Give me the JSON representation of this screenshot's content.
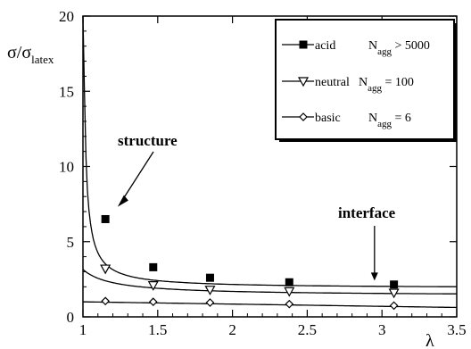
{
  "chart_data": {
    "type": "line",
    "xlabel": "λ",
    "ylabel": {
      "main": "σ/σ",
      "sub": "latex"
    },
    "xlim": [
      1,
      3.5
    ],
    "ylim": [
      0,
      20
    ],
    "xticks": [
      "1",
      "1.5",
      "2",
      "2.5",
      "3",
      "3.5"
    ],
    "yticks": [
      "0",
      "5",
      "10",
      "15",
      "20"
    ],
    "series": [
      {
        "name": "acid",
        "legend_suffix": "> 5000",
        "marker": "square-filled",
        "points": [
          [
            1.15,
            6.5
          ],
          [
            1.47,
            3.3
          ],
          [
            1.85,
            2.6
          ],
          [
            2.38,
            2.3
          ],
          [
            3.08,
            2.15
          ]
        ],
        "curve": {
          "a": 1.9,
          "b": 0.26,
          "c": 0.01
        }
      },
      {
        "name": "neutral",
        "legend_suffix": "= 100",
        "marker": "triangle-down-open",
        "points": [
          [
            1.15,
            3.2
          ],
          [
            1.47,
            2.1
          ],
          [
            1.85,
            1.8
          ],
          [
            2.38,
            1.7
          ],
          [
            3.08,
            1.6
          ]
        ],
        "curve": {
          "a": 1.4,
          "b": 0.35,
          "c": 0.2
        }
      },
      {
        "name": "basic",
        "legend_suffix": "= 6",
        "marker": "diamond-open",
        "points": [
          [
            1.15,
            1.05
          ],
          [
            1.47,
            1.0
          ],
          [
            1.85,
            0.95
          ],
          [
            2.38,
            0.85
          ],
          [
            3.08,
            0.75
          ]
        ],
        "curve": {
          "a": 1.0,
          "slope": -0.15
        }
      }
    ],
    "legend": {
      "position": "top-right",
      "n_label": "N",
      "n_sub": "agg"
    },
    "annotations": [
      {
        "text": "structure",
        "target": [
          1.25,
          7.5
        ]
      },
      {
        "text": "interface",
        "target": [
          2.95,
          2.35
        ]
      }
    ],
    "grid": false
  }
}
